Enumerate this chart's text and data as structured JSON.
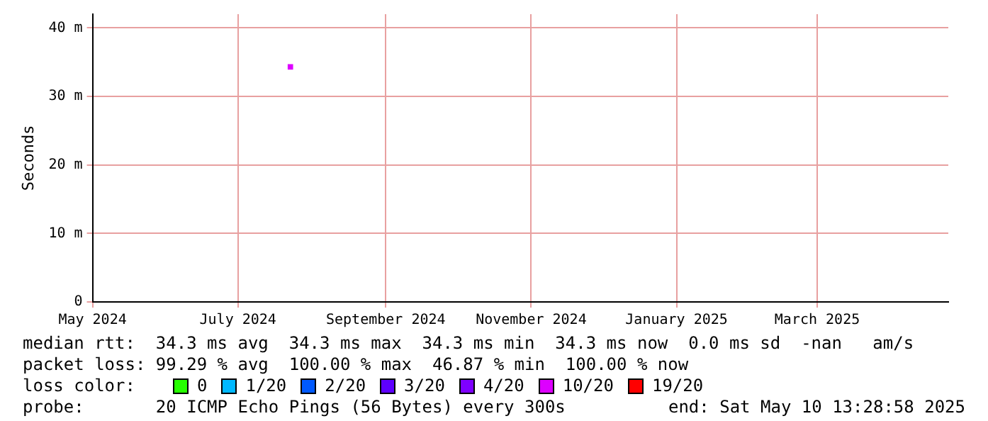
{
  "chart_data": {
    "type": "scatter",
    "ylabel": "Seconds",
    "legend_title": "loss color:",
    "legend": "bottom",
    "grid": true,
    "marker": "square",
    "xlim": [
      "2024-05-01",
      "2025-04-25"
    ],
    "xticks": [
      {
        "value": "2024-05-01",
        "label": "May 2024"
      },
      {
        "value": "2024-07-01",
        "label": "July 2024"
      },
      {
        "value": "2024-09-01",
        "label": "September 2024"
      },
      {
        "value": "2024-11-01",
        "label": "November 2024"
      },
      {
        "value": "2025-01-01",
        "label": "January 2025"
      },
      {
        "value": "2025-03-01",
        "label": "March 2025"
      }
    ],
    "ylim": [
      0,
      42
    ],
    "yticks": [
      0,
      {
        "value": 10,
        "label": "10 m"
      },
      {
        "value": 20,
        "label": "20 m"
      },
      {
        "value": 30,
        "label": "30 m"
      },
      {
        "value": 40,
        "label": "40 m"
      }
    ],
    "series": [
      {
        "name": "0",
        "color": "#26ff00"
      },
      {
        "name": "1/20",
        "color": "#00b8ff"
      },
      {
        "name": "2/20",
        "color": "#0059ff"
      },
      {
        "name": "3/20",
        "color": "#5e00ff"
      },
      {
        "name": "4/20",
        "color": "#7e00ff"
      },
      {
        "name": "10/20",
        "color": "#dd00ff",
        "x": [
          "2024-07-23"
        ],
        "values": [
          34.3
        ]
      },
      {
        "name": "19/20",
        "color": "#ff0000"
      }
    ],
    "annotations": [
      "median rtt:  34.3 ms avg  34.3 ms max  34.3 ms min  34.3 ms now  0.0 ms sd  -nan   am/s",
      "packet loss: 99.29 % avg  100.00 % max  46.87 % min  100.00 % now",
      "probe:       20 ICMP Echo Pings (56 Bytes) every 300s",
      "end: Sat May 10 13:28:58 2025"
    ]
  }
}
